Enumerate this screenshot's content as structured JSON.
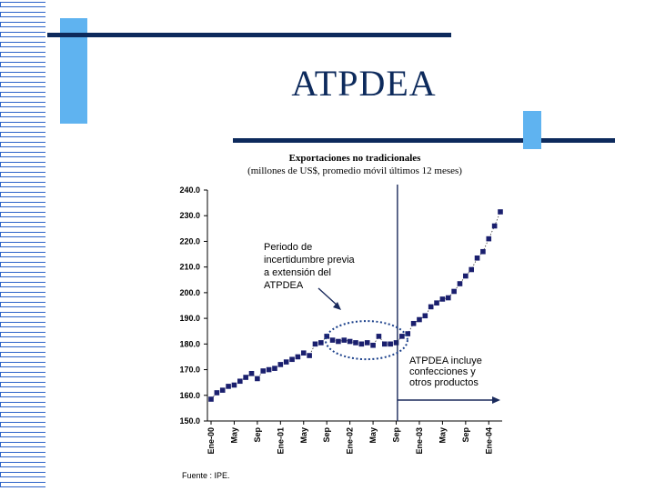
{
  "slide": {
    "title": "ATPDEA",
    "footnote": "Fuente : IPE."
  },
  "chart_data": {
    "type": "scatter",
    "title": "Exportaciones no tradicionales",
    "subtitle": "(millones de US$, promedio móvil últimos 12 meses)",
    "ylim": [
      150,
      240
    ],
    "y_ticks": [
      "240.0",
      "230.0",
      "220.0",
      "210.0",
      "200.0",
      "190.0",
      "180.0",
      "170.0",
      "160.0",
      "150.0"
    ],
    "x_ticks": [
      "Ene-00",
      "May",
      "Sep",
      "Ene-01",
      "May",
      "Sep",
      "Ene-02",
      "May",
      "Sep",
      "Ene-03",
      "May",
      "Sep",
      "Ene-04"
    ],
    "series": [
      {
        "values": [
          158.5,
          161.0,
          162.0,
          163.5,
          164.0,
          165.5,
          167.0,
          168.5,
          166.5,
          169.5,
          170.0,
          170.5,
          172.0,
          173.0,
          174.0,
          175.0,
          176.5,
          175.5,
          180.0,
          180.5,
          183.0,
          181.5,
          181.0,
          181.5,
          181.0,
          180.5,
          180.0,
          180.5,
          179.5,
          183.0,
          180.0,
          180.0,
          180.5,
          183.0,
          184.0,
          188.0,
          189.5,
          191.0,
          194.5,
          196.0,
          197.5,
          198.0,
          200.5,
          203.5,
          206.5,
          209.0,
          213.5,
          216.0,
          221.0,
          226.0,
          231.5
        ]
      }
    ],
    "annotations": {
      "left": [
        "Periodo de",
        "incertidumbre previa",
        "a extensión del",
        "ATPDEA"
      ],
      "right": [
        "ATPDEA incluye",
        "confecciones y",
        "otros productos"
      ]
    },
    "grid": false,
    "legend": "none"
  }
}
